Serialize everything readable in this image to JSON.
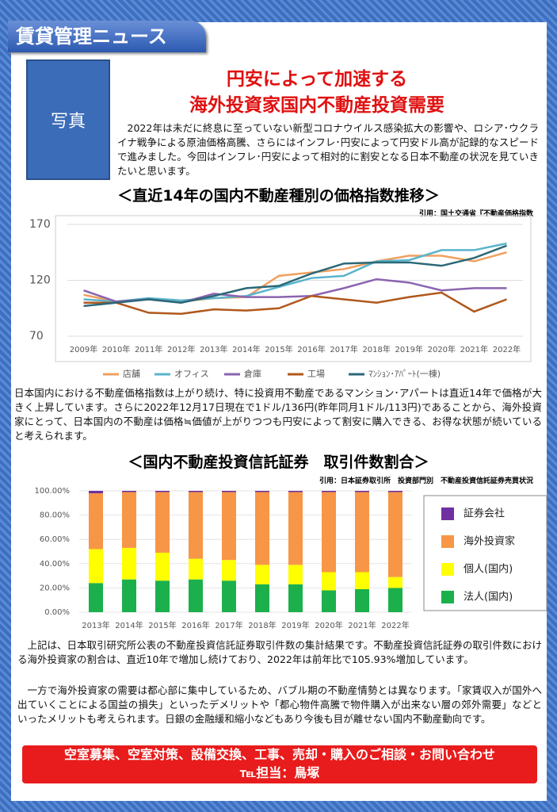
{
  "header": {
    "title": "賃貸管理ニュース",
    "photo": "写真"
  },
  "headline": [
    "円安によって加速する",
    "海外投資家国内不動産投資需要"
  ],
  "intro": "2022年は未だに終息に至っていない新型コロナウイルス感染拡大の影響や、ロシア･ウクライナ戦争による原油価格高騰、さらにはインフレ･円安によって円安ドル高が記録的なスピードで進みました。今回はインフレ･円安によって相対的に割安となる日本不動産の状況を見ていきたいと思います。",
  "chart_data": [
    {
      "type": "line",
      "title": "＜直近14年の国内不動産種別の価格指数推移＞",
      "source": "引用：国土交通省『不動産価格指数",
      "categories": [
        "2009年",
        "2010年",
        "2011年",
        "2012年",
        "2013年",
        "2014年",
        "2015年",
        "2016年",
        "2017年",
        "2018年",
        "2019年",
        "2020年",
        "2021年",
        "2022年"
      ],
      "series": [
        {
          "name": "店舗",
          "color": "#f0a060",
          "values": [
            107,
            101,
            103,
            101,
            104,
            105,
            124,
            127,
            130,
            137,
            142,
            142,
            137,
            145
          ]
        },
        {
          "name": "オフィス",
          "color": "#5ab4cc",
          "values": [
            103,
            101,
            104,
            102,
            104,
            106,
            114,
            122,
            124,
            137,
            138,
            147,
            147,
            153
          ]
        },
        {
          "name": "倉庫",
          "color": "#8a64b0",
          "values": [
            111,
            101,
            103,
            100,
            108,
            105,
            105,
            106,
            113,
            121,
            118,
            111,
            113,
            113
          ]
        },
        {
          "name": "工場",
          "color": "#b0581c",
          "values": [
            100,
            100,
            91,
            90,
            94,
            93,
            95,
            106,
            103,
            100,
            105,
            109,
            92,
            103
          ]
        },
        {
          "name": "ﾏﾝｼｮﾝ･ｱﾊﾟｰﾄ(一棟)",
          "color": "#2a6878",
          "values": [
            97,
            100,
            103,
            100,
            106,
            113,
            115,
            126,
            135,
            136,
            136,
            133,
            140,
            151
          ]
        }
      ],
      "ylim": [
        70,
        170
      ],
      "yticks": [
        70,
        120,
        170
      ],
      "grid": true,
      "legend": "bottom"
    },
    {
      "type": "stacked_bar",
      "title": "＜国内不動産投資信託証券　取引件数割合＞",
      "source": "引用：日本証券取引所　投資部門別　不動産投資信託証券売買状況",
      "categories": [
        "2013年",
        "2014年",
        "2015年",
        "2016年",
        "2017年",
        "2018年",
        "2019年",
        "2020年",
        "2021年",
        "2022年"
      ],
      "series": [
        {
          "name": "法人(国内)",
          "color": "#1cb04c",
          "values": [
            24,
            27,
            26,
            27,
            26,
            23,
            23,
            18,
            19,
            20
          ]
        },
        {
          "name": "個人(国内)",
          "color": "#ffff00",
          "values": [
            28,
            26,
            23,
            17,
            17,
            16,
            16,
            15,
            14,
            9
          ]
        },
        {
          "name": "海外投資家",
          "color": "#f79646",
          "values": [
            46,
            46,
            50,
            55,
            56,
            60,
            60,
            66,
            66,
            70
          ]
        },
        {
          "name": "証券会社",
          "color": "#7030a0",
          "values": [
            2,
            1,
            1,
            1,
            1,
            1,
            1,
            1,
            1,
            1
          ]
        }
      ],
      "ylim": [
        0,
        100
      ],
      "yticks": [
        {
          "value": 0,
          "label": "0.00%"
        },
        {
          "value": 20,
          "label": "20.00%"
        },
        {
          "value": 40,
          "label": "40.00%"
        },
        {
          "value": 60,
          "label": "60.00%"
        },
        {
          "value": 80,
          "label": "80.00%"
        },
        {
          "value": 100,
          "label": "100.00%"
        }
      ],
      "grid": true,
      "legend": "right"
    }
  ],
  "paragraphs": [
    "日本国内における不動産価格指数は上がり続け、特に投資用不動産であるマンション･アパートは直近14年で価格が大きく上昇しています。さらに2022年12月17日現在で1ドル/136円(昨年同月1ドル/113円)であることから、海外投資家にとって、日本国内の不動産は価格≒価値が上がりつつも円安によって割安に購入できる、お得な状態が続いていると考えられます。",
    "上記は、日本取引研究所公表の不動産投資信託証券取引件数の集計結果です。不動産投資信託証券の取引件数における海外投資家の割合は、直近10年で増加し続けており、2022年は前年比で105.93%増加しています。",
    "一方で海外投資家の需要は都心部に集中しているため、バブル期の不動産情勢とは異なります。「家賃収入が国外へ出ていくことによる国益の損失」といったデメリットや「都心物件高騰で物件購入が出来ない層の郊外需要」などといったメリットも考えられます。日銀の金融緩和縮小などもあり今後も目が離せない国内不動産動向です。"
  ],
  "footer": [
    "空室募集、空室対策、設備交換、工事、売却・購入のご相談・お問い合わせ",
    "℡担当：鳥塚"
  ]
}
